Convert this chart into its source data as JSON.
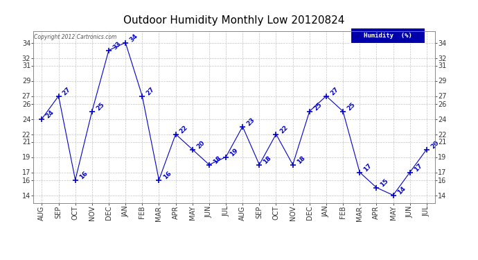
{
  "title": "Outdoor Humidity Monthly Low 20120824",
  "copyright_text": "Copyright 2012 Cartronics.com",
  "legend_label": "Humidity  (%)",
  "x_labels": [
    "AUG",
    "SEP",
    "OCT",
    "NOV",
    "DEC",
    "JAN",
    "FEB",
    "MAR",
    "APR",
    "MAY",
    "JUN",
    "JUL",
    "AUG",
    "SEP",
    "OCT",
    "NOV",
    "DEC",
    "JAN",
    "FEB",
    "MAR",
    "APR",
    "MAY",
    "JUN",
    "JUL"
  ],
  "y_values": [
    24,
    27,
    16,
    25,
    33,
    34,
    27,
    16,
    22,
    20,
    18,
    19,
    23,
    18,
    22,
    18,
    25,
    27,
    25,
    17,
    15,
    14,
    17,
    20
  ],
  "line_color": "#0000CC",
  "marker": "+",
  "marker_size": 6,
  "ylim_min": 13,
  "ylim_max": 35.5,
  "yticks": [
    14,
    16,
    17,
    19,
    21,
    22,
    24,
    26,
    27,
    29,
    31,
    32,
    34
  ],
  "bg_color": "#ffffff",
  "plot_bg_color": "#ffffff",
  "grid_color": "#aaaaaa",
  "title_fontsize": 11,
  "annotation_fontsize": 6.5,
  "tick_fontsize": 7,
  "legend_bg": "#0000AA",
  "legend_fg": "#ffffff"
}
